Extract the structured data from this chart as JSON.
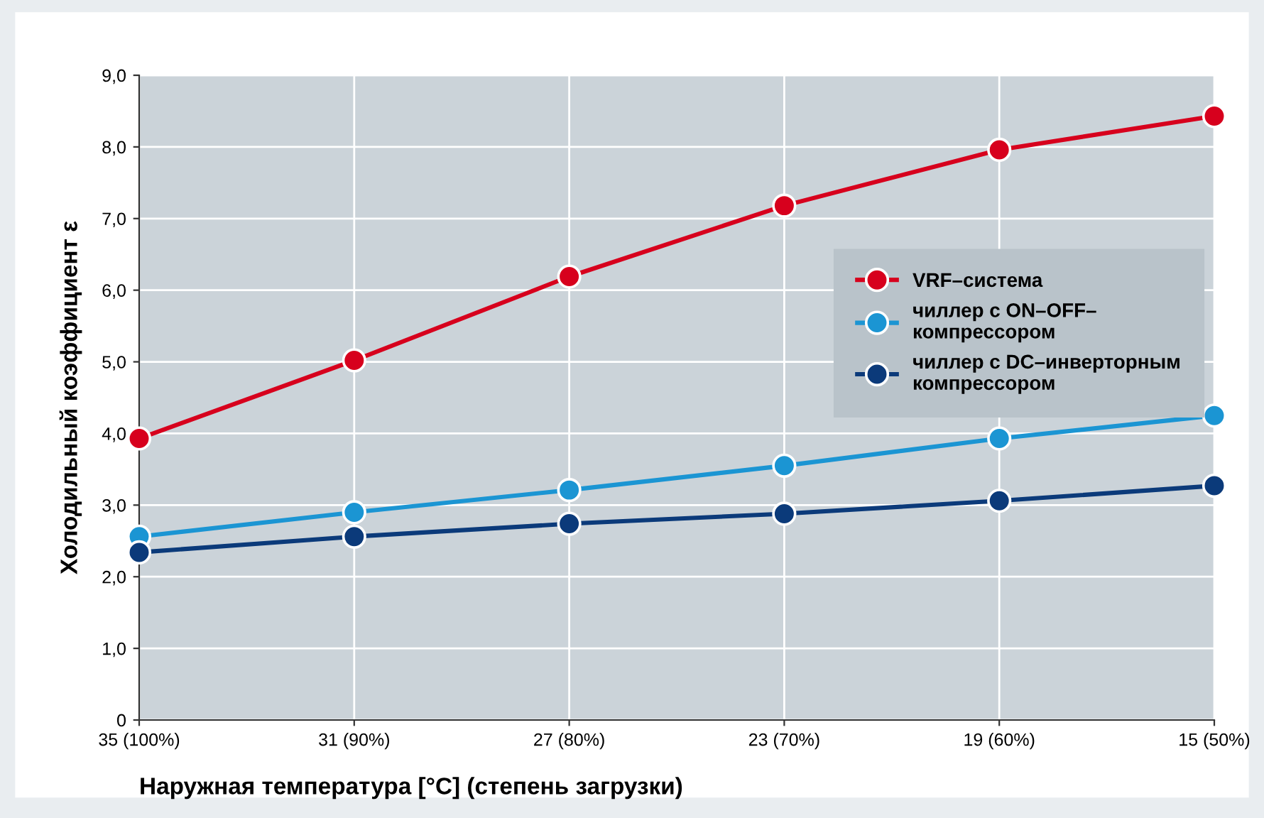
{
  "chart_data": {
    "type": "line",
    "xlabel": "Наружная температура [°C] (степень загрузки)",
    "ylabel": "Холодильный коэффициент ε",
    "categories": [
      "35 (100%)",
      "31 (90%)",
      "27 (80%)",
      "23 (70%)",
      "19 (60%)",
      "15 (50%)"
    ],
    "series": [
      {
        "name": "VRF–система",
        "color": "#d7001d",
        "values": [
          3.93,
          5.02,
          6.19,
          7.18,
          7.96,
          8.43
        ]
      },
      {
        "name": "чиллер с ON–OFF–\nкомпрессором",
        "color": "#1b95d3",
        "values": [
          2.56,
          2.9,
          3.21,
          3.55,
          3.93,
          4.25
        ]
      },
      {
        "name": "чиллер с DC–инверторным\nкомпрессором",
        "color": "#0b3a7a",
        "values": [
          2.34,
          2.56,
          2.74,
          2.88,
          3.06,
          3.27
        ]
      }
    ],
    "ylim": [
      0,
      9
    ],
    "yticks": [
      0,
      {
        "value": 1,
        "label": "1,0"
      },
      {
        "value": 2,
        "label": "2,0"
      },
      {
        "value": 3,
        "label": "3,0"
      },
      {
        "value": 4,
        "label": "4,0"
      },
      {
        "value": 5,
        "label": "5,0"
      },
      {
        "value": 6,
        "label": "6,0"
      },
      {
        "value": 7,
        "label": "7,0"
      },
      {
        "value": 8,
        "label": "8,0"
      },
      {
        "value": 9,
        "label": "9,0"
      }
    ],
    "grid": true,
    "legend": "center right",
    "marker": "circle",
    "line_style": "solid"
  }
}
